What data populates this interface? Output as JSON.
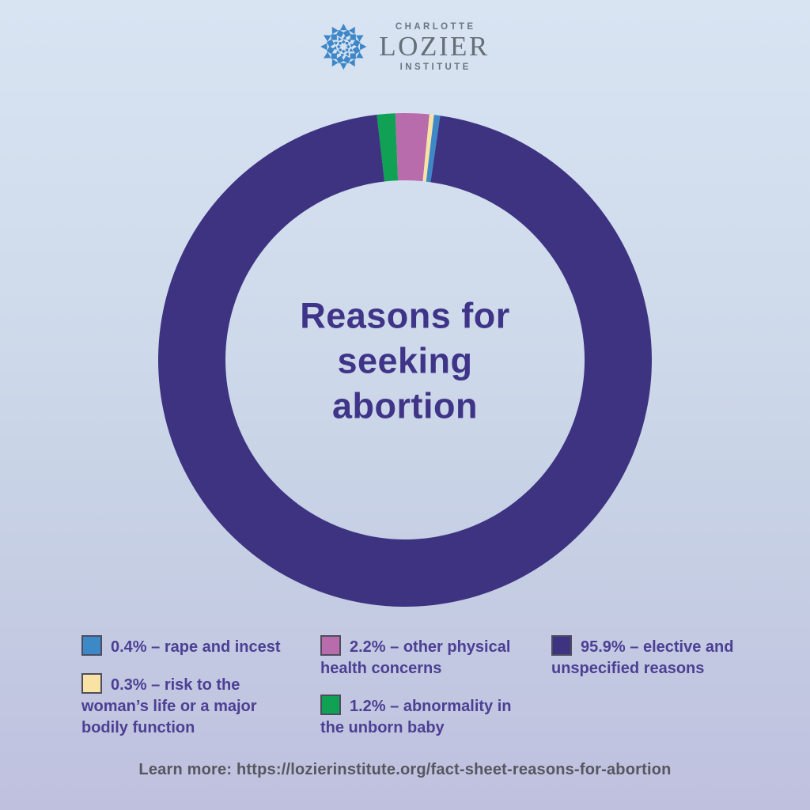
{
  "logo": {
    "line1": "CHARLOTTE",
    "line2": "LOZIER",
    "line3": "INSTITUTE",
    "icon": "starburst-icon",
    "icon_color": "#3e87c8",
    "text_color": "#6d7580"
  },
  "title": {
    "full": "Reasons for seeking abortion",
    "lines": [
      "Reasons for",
      "seeking",
      "abortion"
    ]
  },
  "chart_data": {
    "type": "pie",
    "subtype": "donut",
    "title": "Reasons for seeking abortion",
    "start_angle_deg": -6.56,
    "direction": "clockwise",
    "slices": [
      {
        "label": "abnormality in the unborn baby",
        "value": 1.2,
        "color": "#10a155"
      },
      {
        "label": "other physical health concerns",
        "value": 2.2,
        "color": "#b96cab"
      },
      {
        "label": "risk to the woman’s life or a major bodily function",
        "value": 0.3,
        "color": "#f8e3a5"
      },
      {
        "label": "rape and incest",
        "value": 0.4,
        "color": "#3d89c8"
      },
      {
        "label": "elective and unspecified reasons",
        "value": 95.9,
        "color": "#3d3381"
      }
    ],
    "legend_position": "bottom"
  },
  "legend": {
    "columns": [
      {
        "items": [
          {
            "color": "#3d89c8",
            "percent": "0.4%",
            "lines": [
              "0.4% – rape and incest"
            ]
          },
          {
            "color": "#f8e3a5",
            "percent": "0.3%",
            "lines": [
              "0.3% – risk to the",
              "woman’s life or a major",
              "bodily function"
            ]
          }
        ]
      },
      {
        "items": [
          {
            "color": "#b96cab",
            "percent": "2.2%",
            "lines": [
              "2.2% – other physical",
              "health concerns"
            ]
          },
          {
            "color": "#10a155",
            "percent": "1.2%",
            "lines": [
              "1.2% – abnormality in",
              "the unborn baby"
            ]
          }
        ]
      },
      {
        "items": [
          {
            "color": "#3d3381",
            "percent": "95.9%",
            "lines": [
              "95.9% – elective and",
              "unspecified reasons"
            ]
          }
        ]
      }
    ]
  },
  "footer": {
    "text": "Learn more: https://lozierinstitute.org/fact-sheet-reasons-for-abortion"
  }
}
